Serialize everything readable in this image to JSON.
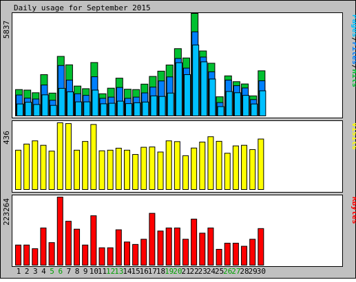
{
  "title": "Daily usage for September 2015",
  "colors": {
    "background": "#c0c0c0",
    "panel": "#ffffff",
    "hits": "#00c030",
    "files": "#0080ff",
    "pages": "#00c0ff",
    "visits": "#ffff00",
    "kbytes": "#ff0000",
    "weekend_label": "#00a000",
    "weekday_label": "#000000"
  },
  "chart_data": [
    {
      "type": "bar",
      "panel": "hits-files-pages",
      "categories": [
        "1",
        "2",
        "3",
        "4",
        "5",
        "6",
        "7",
        "8",
        "9",
        "10",
        "11",
        "12",
        "13",
        "14",
        "15",
        "16",
        "17",
        "18",
        "19",
        "20",
        "21",
        "22",
        "23",
        "24",
        "25",
        "26",
        "27",
        "28",
        "29",
        "30"
      ],
      "weekend_days": [
        "5",
        "6",
        "12",
        "13",
        "19",
        "20",
        "26",
        "27"
      ],
      "ymax_label": "5837",
      "ylim": [
        0,
        5837
      ],
      "legend": [
        {
          "text": "Pages",
          "color": "#00c0ff"
        },
        {
          "text": "/",
          "color": "#000000"
        },
        {
          "text": "Files",
          "color": "#0080ff"
        },
        {
          "text": "/",
          "color": "#000000"
        },
        {
          "text": "Hits",
          "color": "#00c030"
        }
      ],
      "series": [
        {
          "name": "Hits",
          "values": [
            1500,
            1470,
            1320,
            2350,
            1300,
            3390,
            2910,
            1700,
            1550,
            3040,
            1260,
            1580,
            2150,
            1520,
            1500,
            1810,
            2250,
            2550,
            2900,
            3830,
            3300,
            5837,
            3700,
            3000,
            1090,
            2280,
            1950,
            1820,
            1140,
            2570
          ]
        },
        {
          "name": "Files",
          "values": [
            1190,
            1010,
            960,
            1760,
            890,
            2870,
            2040,
            1260,
            1170,
            2230,
            1000,
            1070,
            1620,
            1000,
            1070,
            1310,
            1640,
            1990,
            2220,
            3270,
            2720,
            4790,
            3350,
            2510,
            760,
            2040,
            1720,
            1590,
            930,
            2000
          ]
        },
        {
          "name": "Pages",
          "values": [
            680,
            780,
            650,
            1200,
            600,
            1570,
            1370,
            800,
            800,
            1470,
            690,
            720,
            840,
            700,
            750,
            790,
            1140,
            1110,
            1300,
            3030,
            2350,
            4040,
            3080,
            2100,
            530,
            1390,
            1320,
            1170,
            680,
            1430
          ]
        }
      ]
    },
    {
      "type": "bar",
      "panel": "visits",
      "categories": [
        "1",
        "2",
        "3",
        "4",
        "5",
        "6",
        "7",
        "8",
        "9",
        "10",
        "11",
        "12",
        "13",
        "14",
        "15",
        "16",
        "17",
        "18",
        "19",
        "20",
        "21",
        "22",
        "23",
        "24",
        "25",
        "26",
        "27",
        "28",
        "29",
        "30"
      ],
      "ymax_label": "436",
      "ylim": [
        0,
        436
      ],
      "legend": [
        {
          "text": "Visits",
          "color": "#ffff00"
        }
      ],
      "series": [
        {
          "name": "Visits",
          "values": [
            257,
            297,
            318,
            289,
            251,
            436,
            431,
            257,
            314,
            425,
            253,
            257,
            270,
            257,
            229,
            276,
            278,
            245,
            318,
            313,
            221,
            271,
            310,
            345,
            315,
            237,
            285,
            289,
            261,
            330
          ]
        }
      ]
    },
    {
      "type": "bar",
      "panel": "kbytes",
      "categories": [
        "1",
        "2",
        "3",
        "4",
        "5",
        "6",
        "7",
        "8",
        "9",
        "10",
        "11",
        "12",
        "13",
        "14",
        "15",
        "16",
        "17",
        "18",
        "19",
        "20",
        "21",
        "22",
        "23",
        "24",
        "25",
        "26",
        "27",
        "28",
        "29",
        "30"
      ],
      "ymax_label": "223264",
      "ylim": [
        0,
        223264
      ],
      "legend": [
        {
          "text": "KBytes",
          "color": "#ff0000"
        }
      ],
      "series": [
        {
          "name": "KBytes",
          "values": [
            66000,
            66000,
            54000,
            122000,
            74000,
            223264,
            144000,
            118000,
            66000,
            162000,
            57000,
            57000,
            116000,
            76000,
            68000,
            85000,
            170000,
            112000,
            122000,
            122000,
            85000,
            151000,
            105000,
            122000,
            52000,
            72000,
            72000,
            62000,
            85000,
            120000
          ]
        }
      ]
    }
  ]
}
